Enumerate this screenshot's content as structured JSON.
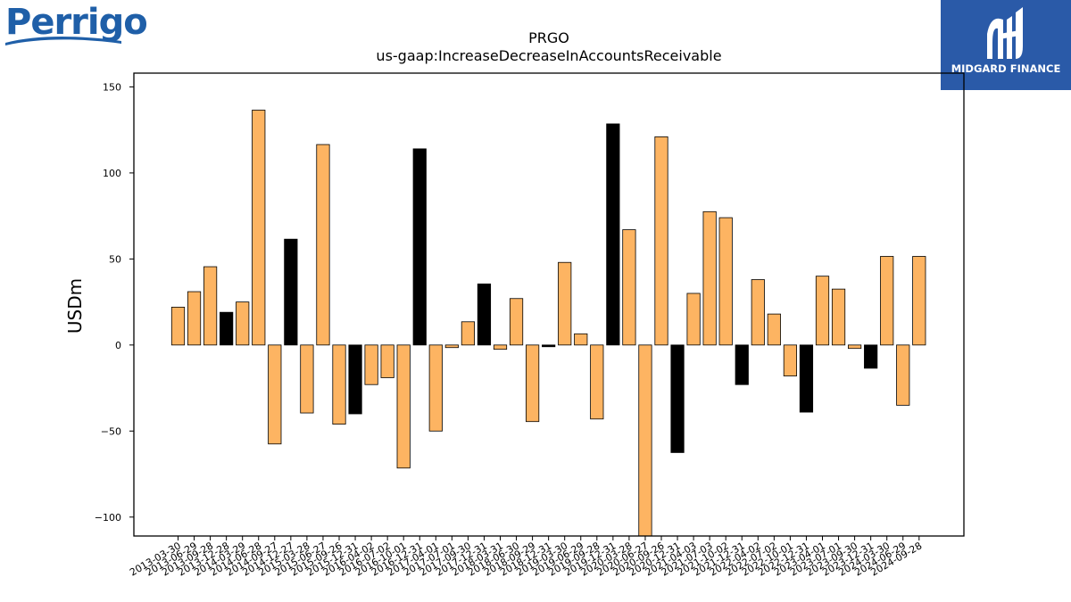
{
  "logos": {
    "left_text": "Perrigo",
    "right_text": "MIDGARD FINANCE"
  },
  "chart_data": {
    "type": "bar",
    "title": "PRGO",
    "subtitle": "us-gaap:IncreaseDecreaseInAccountsReceivable",
    "xlabel": "",
    "ylabel": "USDm",
    "ylim": [
      -111,
      158
    ],
    "yticks": [
      -100,
      -50,
      0,
      50,
      100,
      150
    ],
    "ytick_labels": [
      "−100",
      "−50",
      "0",
      "50",
      "100",
      "150"
    ],
    "grid": false,
    "colors": {
      "default": "#fdb462",
      "highlight": "#000000"
    },
    "categories": [
      "2013-03-30",
      "2013-06-29",
      "2013-09-28",
      "2013-12-28",
      "2014-03-29",
      "2014-06-28",
      "2014-09-27",
      "2014-12-27",
      "2015-03-28",
      "2015-06-27",
      "2015-09-26",
      "2015-12-31",
      "2016-04-02",
      "2016-07-02",
      "2016-10-01",
      "2016-12-31",
      "2017-04-01",
      "2017-07-01",
      "2017-09-30",
      "2017-12-31",
      "2018-03-31",
      "2018-06-30",
      "2018-09-29",
      "2018-12-31",
      "2019-03-30",
      "2019-06-29",
      "2019-09-28",
      "2019-12-31",
      "2020-03-28",
      "2020-06-27",
      "2020-09-26",
      "2020-12-31",
      "2021-04-03",
      "2021-07-03",
      "2021-10-02",
      "2021-12-31",
      "2022-04-02",
      "2022-07-02",
      "2022-10-01",
      "2022-12-31",
      "2023-04-01",
      "2023-07-01",
      "2023-09-30",
      "2023-12-31",
      "2024-03-30",
      "2024-06-29",
      "2024-09-28"
    ],
    "values": [
      22,
      31,
      45.5,
      19,
      25,
      136.5,
      -57.5,
      61.5,
      -39.5,
      116.5,
      -46,
      -40,
      -23,
      -19,
      -71.5,
      114,
      -50,
      -1.5,
      13.5,
      35.5,
      -2.5,
      27,
      -44.5,
      -1,
      48,
      6.5,
      -43,
      128.5,
      67,
      -111,
      121,
      -62.5,
      30,
      77.5,
      74,
      -23,
      38,
      18,
      -18,
      -39,
      40,
      32.5,
      -2,
      -13.5,
      51.5,
      -35,
      51.5
    ],
    "highlight": [
      false,
      false,
      false,
      true,
      false,
      false,
      false,
      true,
      false,
      false,
      false,
      true,
      false,
      false,
      false,
      true,
      false,
      false,
      false,
      true,
      false,
      false,
      false,
      true,
      false,
      false,
      false,
      true,
      false,
      false,
      false,
      true,
      false,
      false,
      false,
      true,
      false,
      false,
      false,
      true,
      false,
      false,
      false,
      true,
      false,
      false,
      false
    ]
  }
}
